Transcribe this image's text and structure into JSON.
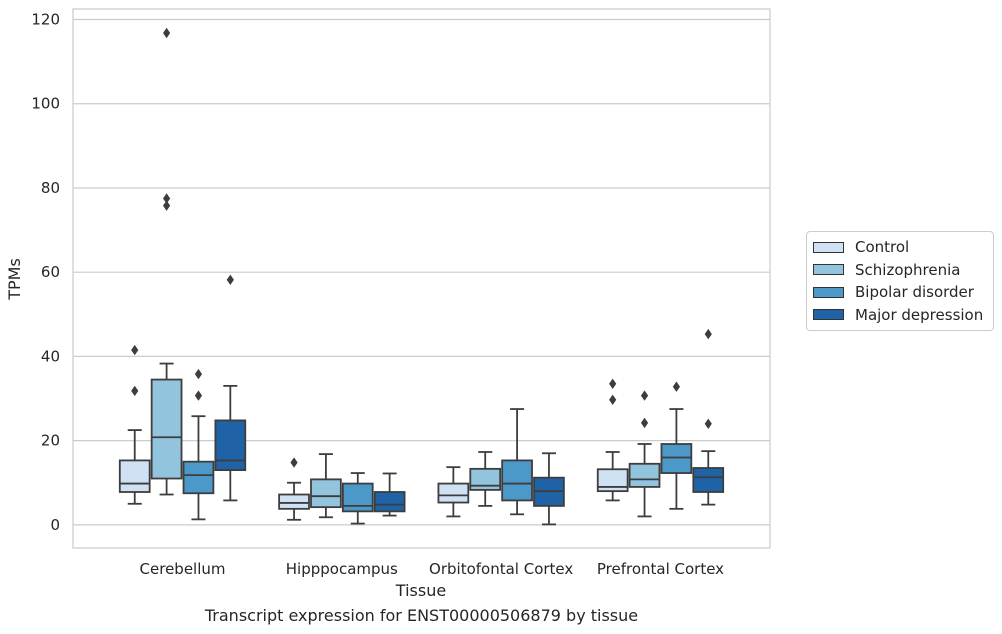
{
  "chart_data": {
    "type": "boxplot",
    "title": "",
    "caption": "Transcript expression for ENST00000506879 by tissue",
    "xlabel": "Tissue",
    "ylabel": "TPMs",
    "ylim": [
      -5.5,
      122.5
    ],
    "yticks": [
      0,
      20,
      40,
      60,
      80,
      100,
      120
    ],
    "grid": "horizontal",
    "legend_position": "right",
    "categories": [
      "Cerebellum",
      "Hipppocampus",
      "Orbitofontal Cortex",
      "Prefrontal Cortex"
    ],
    "series": [
      {
        "name": "Control",
        "color": "#cfe1f2",
        "boxes": [
          {
            "whisker_low": 5,
            "q1": 7.8,
            "median": 9.8,
            "q3": 15.3,
            "whisker_high": 22.5,
            "outliers": [
              31.8,
              41.5
            ]
          },
          {
            "whisker_low": 1.2,
            "q1": 3.8,
            "median": 5.2,
            "q3": 7.2,
            "whisker_high": 10,
            "outliers": [
              14.8
            ]
          },
          {
            "whisker_low": 2,
            "q1": 5.3,
            "median": 7,
            "q3": 9.8,
            "whisker_high": 13.7,
            "outliers": []
          },
          {
            "whisker_low": 5.8,
            "q1": 8,
            "median": 9,
            "q3": 13.2,
            "whisker_high": 17.3,
            "outliers": [
              29.7,
              33.5
            ]
          }
        ]
      },
      {
        "name": "Schizophrenia",
        "color": "#93c4de",
        "boxes": [
          {
            "whisker_low": 7.2,
            "q1": 11,
            "median": 20.8,
            "q3": 34.5,
            "whisker_high": 38.3,
            "outliers": [
              75.8,
              77.5,
              116.8
            ]
          },
          {
            "whisker_low": 1.8,
            "q1": 4.2,
            "median": 6.8,
            "q3": 10.8,
            "whisker_high": 16.8,
            "outliers": []
          },
          {
            "whisker_low": 4.5,
            "q1": 8.3,
            "median": 9.3,
            "q3": 13.3,
            "whisker_high": 17.3,
            "outliers": []
          },
          {
            "whisker_low": 2,
            "q1": 9,
            "median": 10.8,
            "q3": 14.5,
            "whisker_high": 19.2,
            "outliers": [
              24.2,
              30.7
            ]
          }
        ]
      },
      {
        "name": "Bipolar disorder",
        "color": "#4b98c9",
        "boxes": [
          {
            "whisker_low": 1.3,
            "q1": 7.5,
            "median": 11.8,
            "q3": 15,
            "whisker_high": 25.8,
            "outliers": [
              30.7,
              35.8
            ]
          },
          {
            "whisker_low": 0.3,
            "q1": 3.2,
            "median": 4.5,
            "q3": 9.8,
            "whisker_high": 12.3,
            "outliers": []
          },
          {
            "whisker_low": 2.5,
            "q1": 5.8,
            "median": 9.8,
            "q3": 15.3,
            "whisker_high": 27.5,
            "outliers": []
          },
          {
            "whisker_low": 3.8,
            "q1": 12.3,
            "median": 16,
            "q3": 19.2,
            "whisker_high": 27.5,
            "outliers": [
              32.8
            ]
          }
        ]
      },
      {
        "name": "Major depression",
        "color": "#1f62a5",
        "boxes": [
          {
            "whisker_low": 5.8,
            "q1": 13,
            "median": 15.3,
            "q3": 24.8,
            "whisker_high": 33,
            "outliers": [
              58.2
            ]
          },
          {
            "whisker_low": 2.2,
            "q1": 3.2,
            "median": 4.8,
            "q3": 7.8,
            "whisker_high": 12.2,
            "outliers": []
          },
          {
            "whisker_low": 0.1,
            "q1": 4.5,
            "median": 8,
            "q3": 11.2,
            "whisker_high": 17,
            "outliers": []
          },
          {
            "whisker_low": 4.8,
            "q1": 7.8,
            "median": 11.3,
            "q3": 13.5,
            "whisker_high": 17.5,
            "outliers": [
              24,
              45.3
            ]
          }
        ]
      }
    ]
  }
}
